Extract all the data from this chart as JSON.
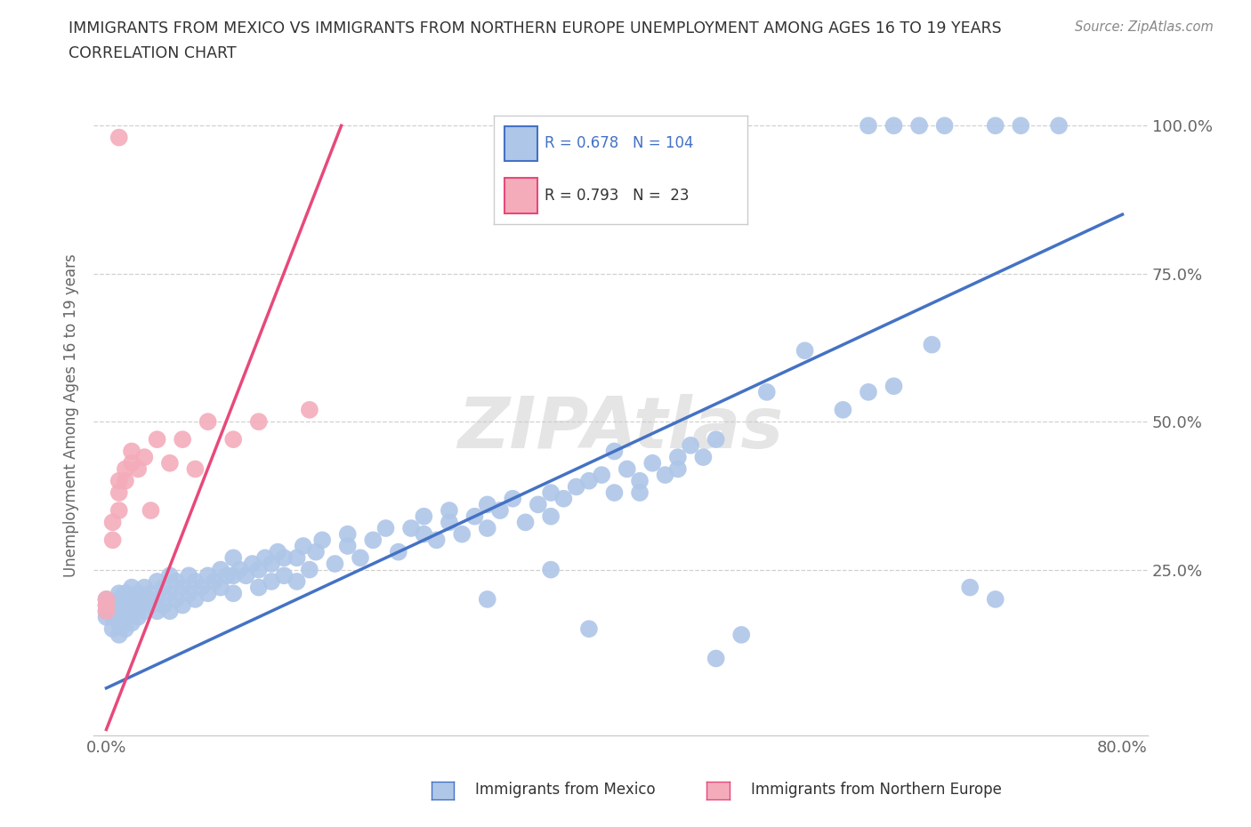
{
  "title_line1": "IMMIGRANTS FROM MEXICO VS IMMIGRANTS FROM NORTHERN EUROPE UNEMPLOYMENT AMONG AGES 16 TO 19 YEARS",
  "title_line2": "CORRELATION CHART",
  "source": "Source: ZipAtlas.com",
  "ylabel": "Unemployment Among Ages 16 to 19 years",
  "xlim": [
    -0.01,
    0.82
  ],
  "ylim": [
    -0.03,
    1.05
  ],
  "xtick_positions": [
    0.0,
    0.1,
    0.2,
    0.3,
    0.4,
    0.5,
    0.6,
    0.7,
    0.8
  ],
  "xticklabels": [
    "0.0%",
    "",
    "",
    "",
    "",
    "",
    "",
    "",
    "80.0%"
  ],
  "ytick_positions": [
    0.0,
    0.25,
    0.5,
    0.75,
    1.0
  ],
  "blue_color": "#AEC6E8",
  "pink_color": "#F4ACBB",
  "blue_line_color": "#4472C4",
  "pink_line_color": "#E8497A",
  "legend_blue_R": "0.678",
  "legend_blue_N": "104",
  "legend_pink_R": "0.793",
  "legend_pink_N": " 23",
  "watermark": "ZIPAtlas",
  "background_color": "#FFFFFF",
  "grid_color": "#D0D0D0",
  "blue_line_x": [
    0.0,
    0.8
  ],
  "blue_line_y": [
    0.05,
    0.85
  ],
  "pink_line_x": [
    0.0,
    0.185
  ],
  "pink_line_y": [
    -0.02,
    1.0
  ],
  "blue_x": [
    0.0,
    0.0,
    0.0,
    0.0,
    0.005,
    0.005,
    0.005,
    0.01,
    0.01,
    0.01,
    0.01,
    0.01,
    0.015,
    0.015,
    0.015,
    0.015,
    0.02,
    0.02,
    0.02,
    0.02,
    0.025,
    0.025,
    0.025,
    0.03,
    0.03,
    0.03,
    0.035,
    0.035,
    0.04,
    0.04,
    0.04,
    0.045,
    0.045,
    0.05,
    0.05,
    0.05,
    0.055,
    0.055,
    0.06,
    0.06,
    0.065,
    0.065,
    0.07,
    0.07,
    0.075,
    0.08,
    0.08,
    0.085,
    0.09,
    0.09,
    0.095,
    0.1,
    0.1,
    0.1,
    0.105,
    0.11,
    0.115,
    0.12,
    0.12,
    0.125,
    0.13,
    0.13,
    0.135,
    0.14,
    0.14,
    0.15,
    0.15,
    0.155,
    0.16,
    0.165,
    0.17,
    0.18,
    0.19,
    0.19,
    0.2,
    0.21,
    0.22,
    0.23,
    0.24,
    0.25,
    0.25,
    0.26,
    0.27,
    0.27,
    0.28,
    0.29,
    0.3,
    0.3,
    0.31,
    0.32,
    0.33,
    0.34,
    0.35,
    0.35,
    0.36,
    0.37,
    0.38,
    0.39,
    0.4,
    0.41,
    0.42,
    0.43,
    0.44,
    0.45,
    0.46,
    0.47,
    0.48
  ],
  "blue_y": [
    0.17,
    0.18,
    0.19,
    0.2,
    0.15,
    0.17,
    0.19,
    0.14,
    0.16,
    0.18,
    0.2,
    0.21,
    0.15,
    0.17,
    0.19,
    0.21,
    0.16,
    0.18,
    0.2,
    0.22,
    0.17,
    0.19,
    0.21,
    0.18,
    0.2,
    0.22,
    0.19,
    0.21,
    0.18,
    0.2,
    0.23,
    0.19,
    0.22,
    0.18,
    0.21,
    0.24,
    0.2,
    0.23,
    0.19,
    0.22,
    0.21,
    0.24,
    0.2,
    0.23,
    0.22,
    0.21,
    0.24,
    0.23,
    0.22,
    0.25,
    0.24,
    0.21,
    0.24,
    0.27,
    0.25,
    0.24,
    0.26,
    0.22,
    0.25,
    0.27,
    0.23,
    0.26,
    0.28,
    0.24,
    0.27,
    0.23,
    0.27,
    0.29,
    0.25,
    0.28,
    0.3,
    0.26,
    0.29,
    0.31,
    0.27,
    0.3,
    0.32,
    0.28,
    0.32,
    0.31,
    0.34,
    0.3,
    0.33,
    0.35,
    0.31,
    0.34,
    0.36,
    0.32,
    0.35,
    0.37,
    0.33,
    0.36,
    0.38,
    0.34,
    0.37,
    0.39,
    0.4,
    0.41,
    0.38,
    0.42,
    0.4,
    0.43,
    0.41,
    0.44,
    0.46,
    0.44,
    0.47
  ],
  "blue_x2": [
    0.3,
    0.35,
    0.38,
    0.4,
    0.42,
    0.45,
    0.48,
    0.5,
    0.52,
    0.55,
    0.58,
    0.6,
    0.62,
    0.65,
    0.68,
    0.7,
    0.6,
    0.62,
    0.64,
    0.66,
    0.7,
    0.72,
    0.75
  ],
  "blue_y2": [
    0.2,
    0.25,
    0.15,
    0.45,
    0.38,
    0.42,
    0.1,
    0.14,
    0.55,
    0.62,
    0.52,
    0.55,
    0.56,
    0.63,
    0.22,
    0.2,
    1.0,
    1.0,
    1.0,
    1.0,
    1.0,
    1.0,
    1.0
  ],
  "pink_x": [
    0.0,
    0.0,
    0.0,
    0.005,
    0.005,
    0.01,
    0.01,
    0.01,
    0.015,
    0.015,
    0.02,
    0.02,
    0.025,
    0.03,
    0.035,
    0.04,
    0.05,
    0.06,
    0.07,
    0.08,
    0.1,
    0.12,
    0.16
  ],
  "pink_y": [
    0.18,
    0.2,
    0.19,
    0.3,
    0.33,
    0.35,
    0.38,
    0.4,
    0.4,
    0.42,
    0.43,
    0.45,
    0.42,
    0.44,
    0.35,
    0.47,
    0.43,
    0.47,
    0.42,
    0.5,
    0.47,
    0.5,
    0.52
  ],
  "pink_outlier_x": [
    0.01
  ],
  "pink_outlier_y": [
    0.98
  ]
}
